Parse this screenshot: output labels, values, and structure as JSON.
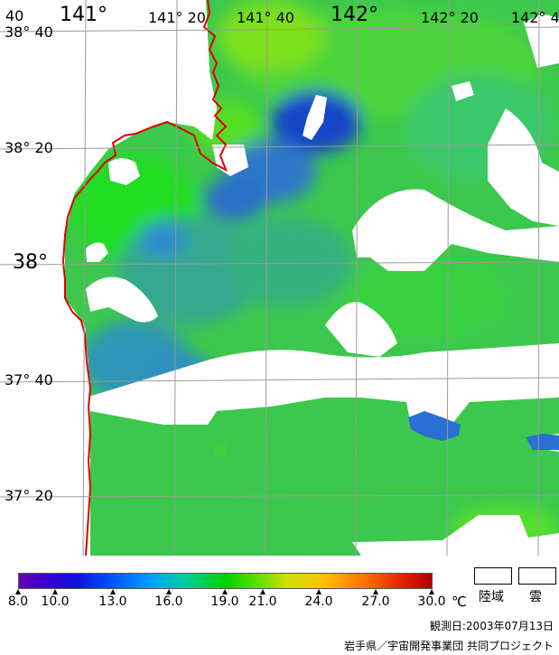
{
  "map": {
    "lat_labels": [
      {
        "text": "38° 40"
      },
      {
        "text": "38° 20"
      },
      {
        "text": "38°"
      },
      {
        "text": "37° 40"
      },
      {
        "text": "37° 20"
      }
    ],
    "lon_labels": [
      {
        "text": "141°"
      },
      {
        "text": "141° 20"
      },
      {
        "text": "141° 40"
      },
      {
        "text": "142°"
      },
      {
        "text": "142° 20"
      },
      {
        "text": "142° 4"
      }
    ],
    "corner_label": "40",
    "colors": {
      "coastline": "#e00000",
      "grid": "#9a9a9a",
      "land_cloud": "#ffffff"
    }
  },
  "legend": {
    "ticks": [
      "8.0",
      "10.0",
      "13.0",
      "16.0",
      "19.0",
      "21.0",
      "24.0",
      "27.0",
      "30.0"
    ],
    "unit": "℃",
    "land_label": "陸域",
    "cloud_label": "雲"
  },
  "footer": {
    "date_label": "観測日:2003年07月13日",
    "credit": "岩手県／宇宙開発事業団 共同プロジェクト"
  }
}
